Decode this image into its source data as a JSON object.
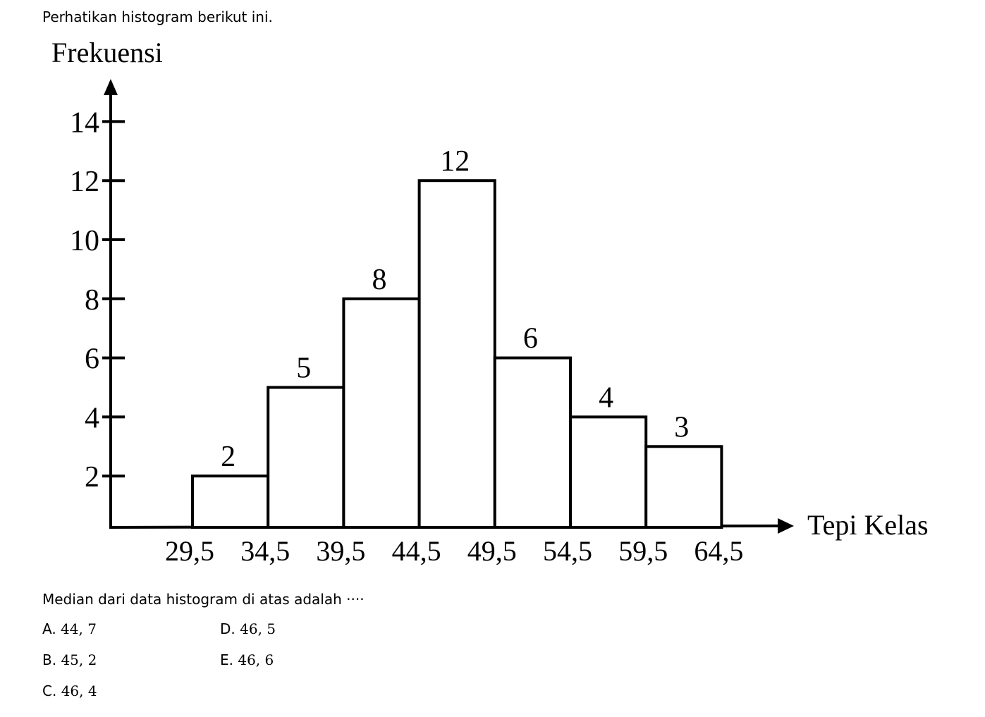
{
  "question_intro": "Perhatikan histogram berikut ini.",
  "question": "Median dari data histogram di atas adalah ····",
  "options": [
    {
      "letter": "A.",
      "value": "44, 7"
    },
    {
      "letter": "B.",
      "value": "45, 2"
    },
    {
      "letter": "C.",
      "value": "46, 4"
    },
    {
      "letter": "D.",
      "value": "46, 5"
    },
    {
      "letter": "E.",
      "value": "46, 6"
    }
  ],
  "chart_data": {
    "type": "bar",
    "ylabel": "Frekuensi",
    "xlabel": "Tepi Kelas",
    "bin_edges": [
      29.5,
      34.5,
      39.5,
      44.5,
      49.5,
      54.5,
      59.5,
      64.5
    ],
    "x_tick_labels": [
      "29,5",
      "34,5",
      "39,5",
      "44,5",
      "49,5",
      "54,5",
      "59,5",
      "64,5"
    ],
    "values": [
      2,
      5,
      8,
      12,
      6,
      4,
      3
    ],
    "data_labels": [
      "2",
      "5",
      "8",
      "12",
      "6",
      "4",
      "3"
    ],
    "y_ticks": [
      2,
      4,
      6,
      8,
      10,
      12,
      14
    ],
    "y_tick_labels": [
      "2",
      "4",
      "6",
      "8",
      "10",
      "12",
      "14"
    ],
    "ylim": [
      0,
      14
    ],
    "grid": false,
    "bar_fill": "#ffffff",
    "bar_stroke": "#000000"
  }
}
